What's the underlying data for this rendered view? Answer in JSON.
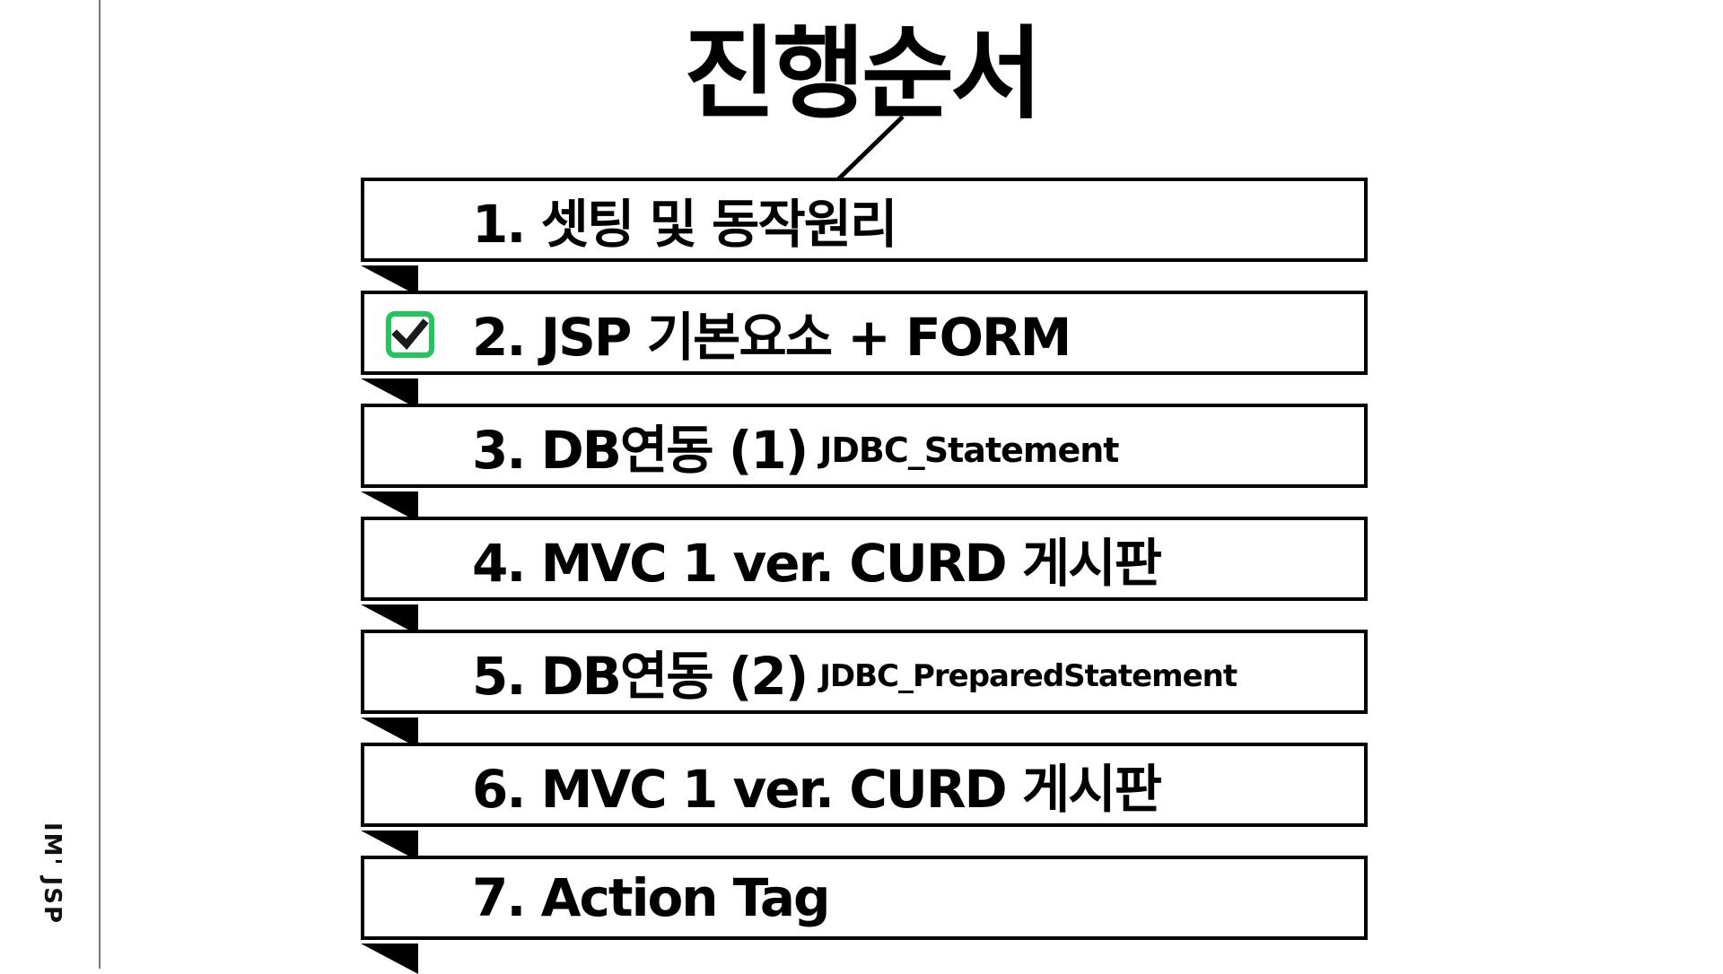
{
  "slide": {
    "title": "진행순서",
    "sidebar_label": "IM' JSP"
  },
  "items": [
    {
      "main": "1.  셋팅 및 동작원리",
      "sub": "",
      "checked": false
    },
    {
      "main": "2. JSP 기본요소 + FORM",
      "sub": "",
      "checked": true
    },
    {
      "main": "3. DB연동 (1)",
      "sub": "JDBC_Statement",
      "checked": false
    },
    {
      "main": "4. MVC 1 ver. CURD 게시판",
      "sub": "",
      "checked": false
    },
    {
      "main": "5. DB연동 (2)",
      "sub": "JDBC_PreparedStatement",
      "checked": false
    },
    {
      "main": "6. MVC 1 ver. CURD 게시판",
      "sub": "",
      "checked": false
    },
    {
      "main": "7. Action Tag",
      "sub": "",
      "checked": false
    }
  ],
  "colors": {
    "check_accent": "#22c55e",
    "ink": "#000000"
  },
  "icons": {
    "checked": "checkbox-checked-icon"
  }
}
